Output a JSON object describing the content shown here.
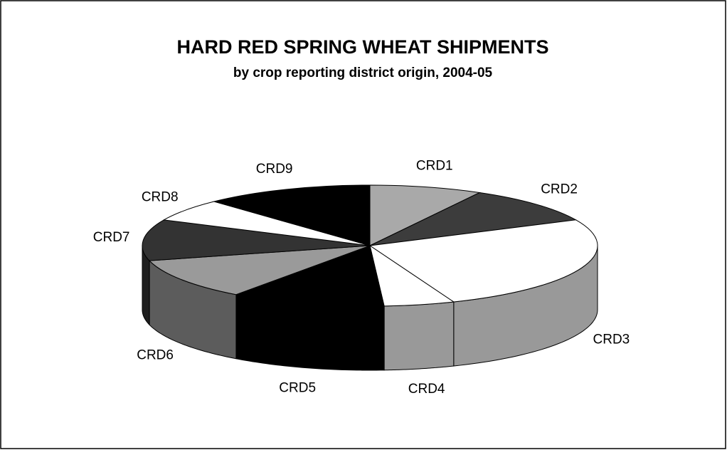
{
  "chart_data": {
    "type": "pie",
    "title": "HARD RED SPRING WHEAT SHIPMENTS",
    "subtitle": "by crop reporting district origin, 2004-05",
    "categories": [
      "CRD1",
      "CRD2",
      "CRD3",
      "CRD4",
      "CRD5",
      "CRD6",
      "CRD7",
      "CRD8",
      "CRD9"
    ],
    "values": [
      8,
      10,
      26,
      5,
      11,
      11,
      11,
      6,
      12
    ],
    "colors": [
      "#a9a9a9",
      "#3c3c3c",
      "#ffffff",
      "#ffffff",
      "#000000",
      "#9a9a9a",
      "#333333",
      "#ffffff",
      "#000000"
    ]
  }
}
